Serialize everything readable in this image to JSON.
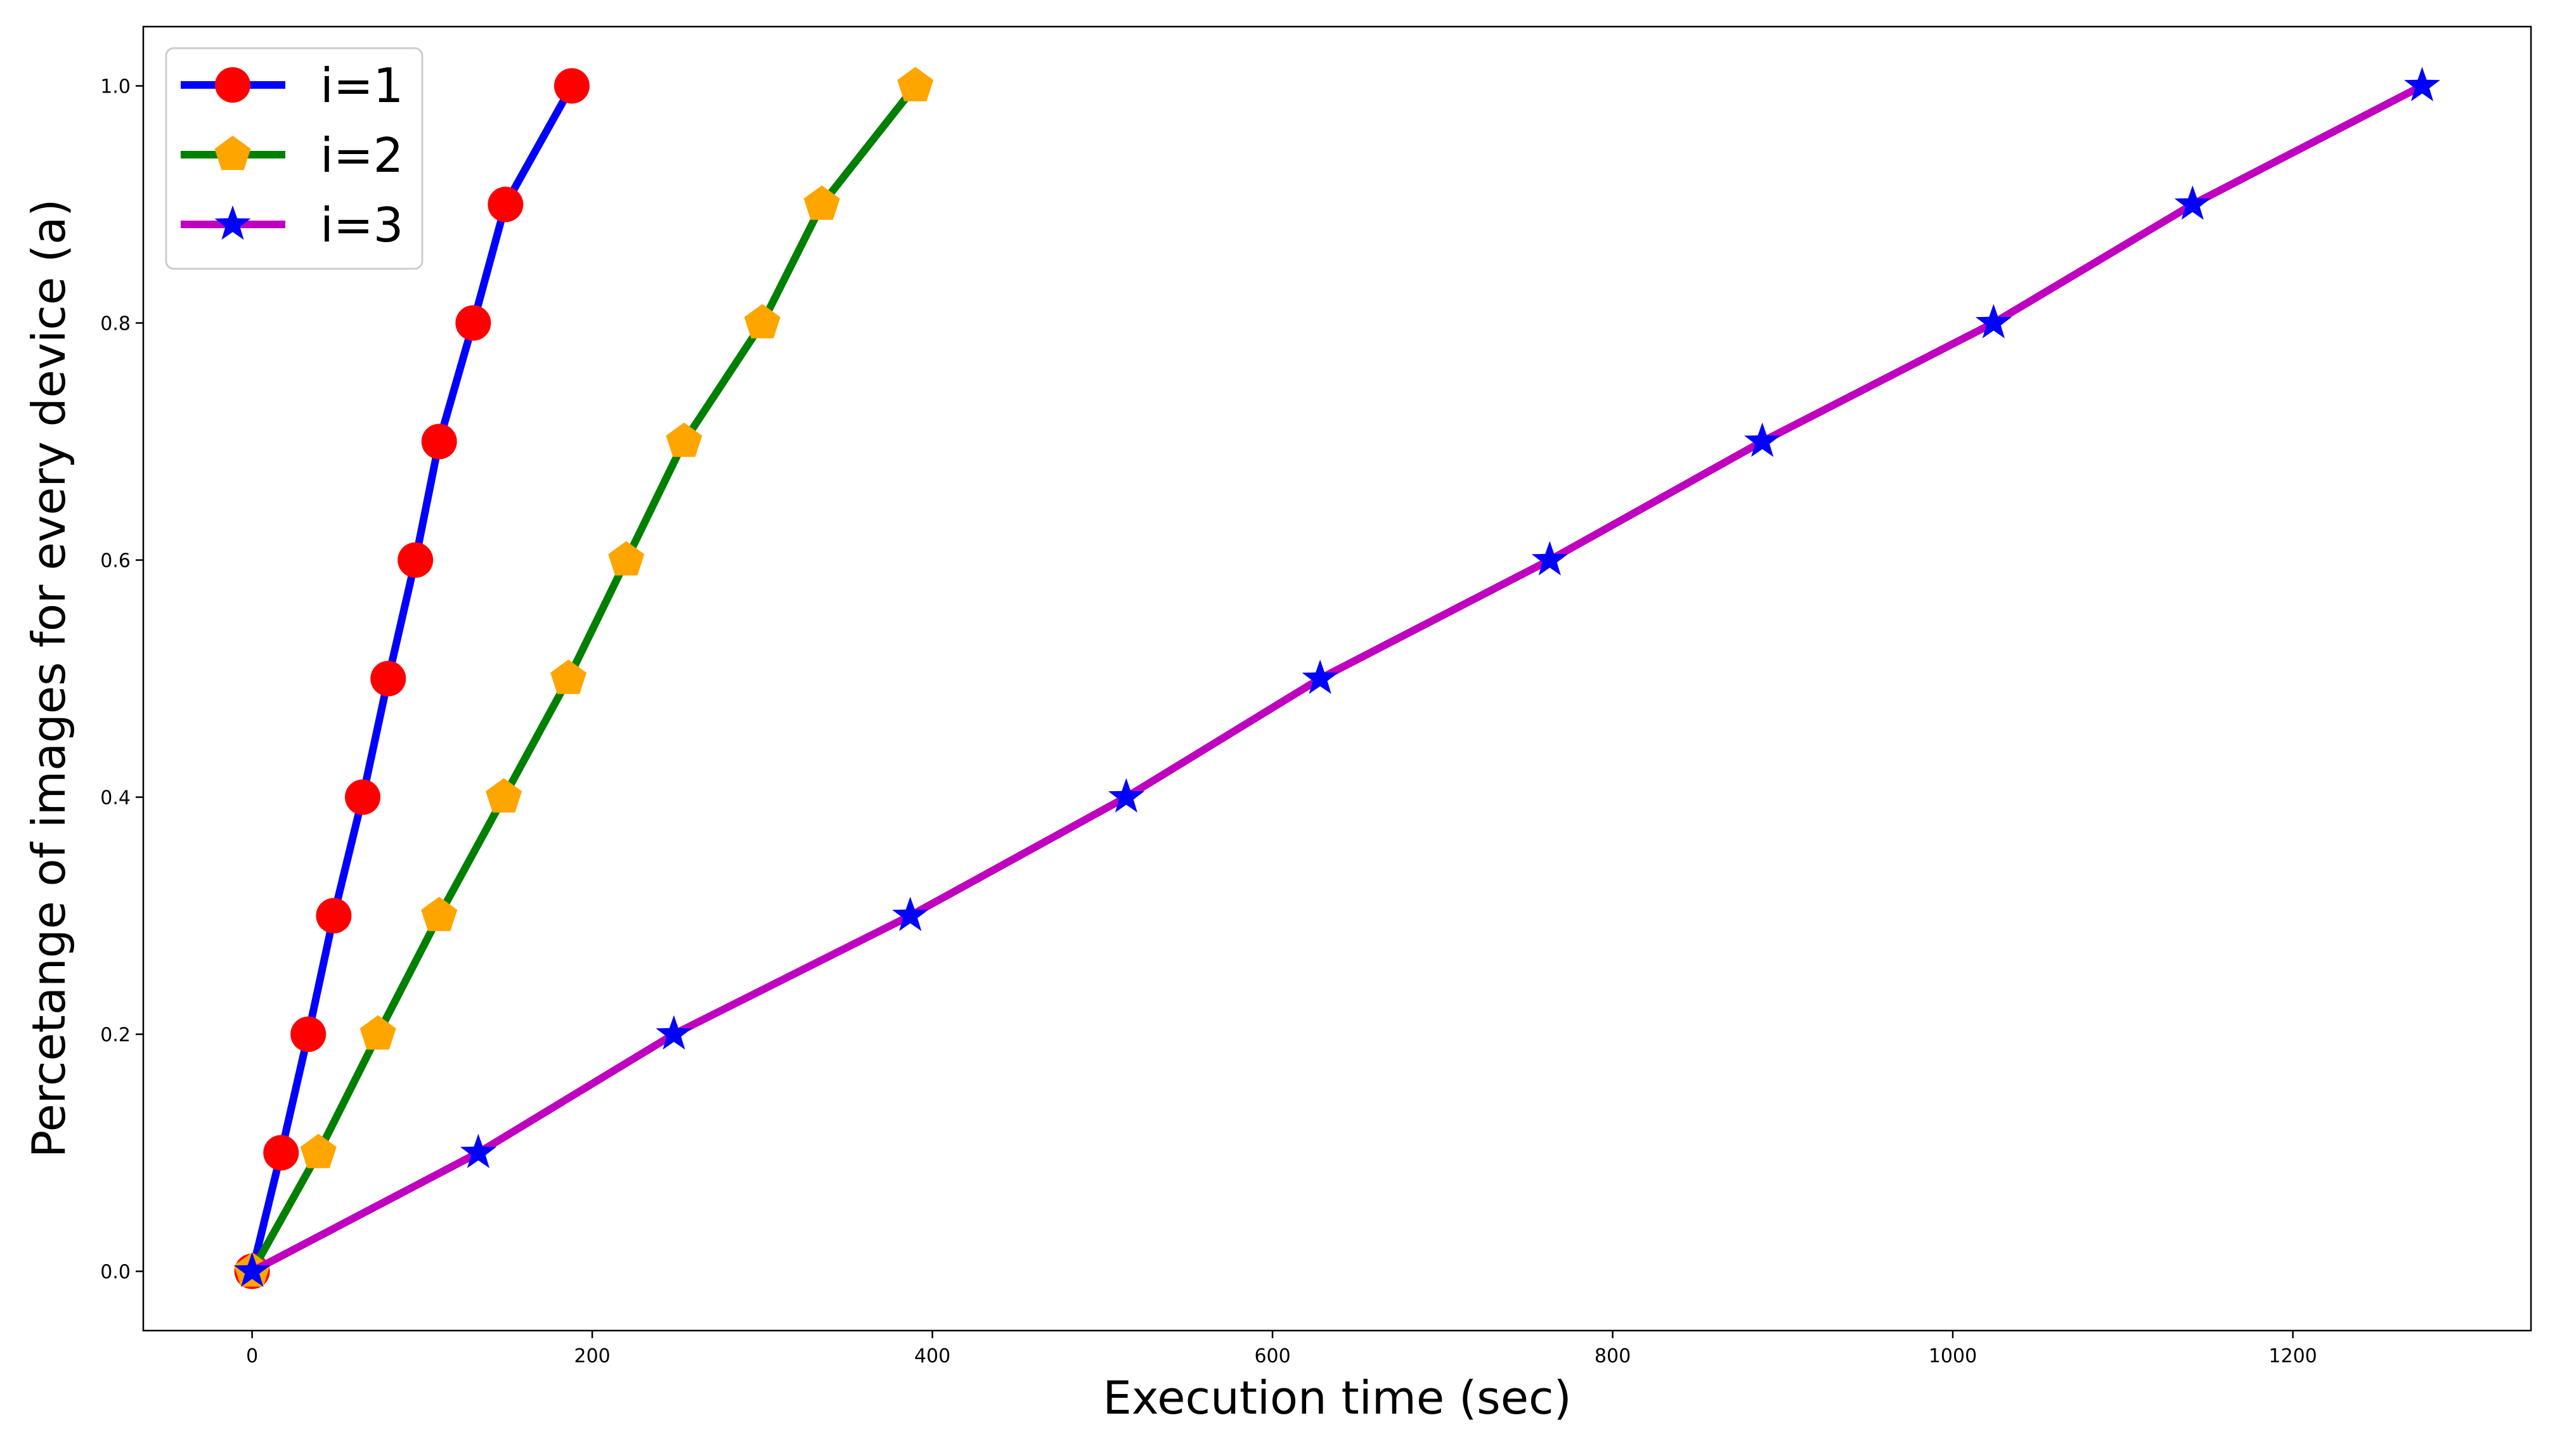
{
  "chart_data": {
    "type": "line",
    "title": "",
    "xlabel": "Execution time (sec)",
    "ylabel": "Percetange of images for every device (a)",
    "xlim": [
      -64,
      1340
    ],
    "ylim": [
      -0.05,
      1.05
    ],
    "xticks": [
      0,
      200,
      400,
      600,
      800,
      1000,
      1200
    ],
    "yticks": [
      0.0,
      0.2,
      0.4,
      0.6,
      0.8,
      1.0
    ],
    "xtick_labels": [
      "0",
      "200",
      "400",
      "600",
      "800",
      "1000",
      "1200"
    ],
    "ytick_labels": [
      "0.0",
      "0.2",
      "0.4",
      "0.6",
      "0.8",
      "1.0"
    ],
    "grid": false,
    "legend_position": "top-left",
    "series": [
      {
        "name": "i=1",
        "line_color": "#0000ff",
        "marker": "circle",
        "marker_color": "#ff0000",
        "x": [
          0,
          17,
          33,
          48,
          65,
          80,
          96,
          110,
          130,
          149,
          188
        ],
        "y": [
          0.0,
          0.1,
          0.2,
          0.3,
          0.4,
          0.5,
          0.6,
          0.7,
          0.8,
          0.9,
          1.0
        ]
      },
      {
        "name": "i=2",
        "line_color": "#008000",
        "marker": "pentagon",
        "marker_color": "#ffa500",
        "x": [
          0,
          39,
          74,
          110,
          148,
          186,
          220,
          254,
          300,
          335,
          390
        ],
        "y": [
          0.0,
          0.1,
          0.2,
          0.3,
          0.4,
          0.5,
          0.6,
          0.7,
          0.8,
          0.9,
          1.0
        ]
      },
      {
        "name": "i=3",
        "line_color": "#bf00bf",
        "marker": "star",
        "marker_color": "#0000ff",
        "x": [
          0,
          133,
          248,
          387,
          514,
          628,
          763,
          888,
          1024,
          1141,
          1276
        ],
        "y": [
          0.0,
          0.1,
          0.2,
          0.3,
          0.4,
          0.5,
          0.6,
          0.7,
          0.8,
          0.9,
          1.0
        ]
      }
    ]
  }
}
